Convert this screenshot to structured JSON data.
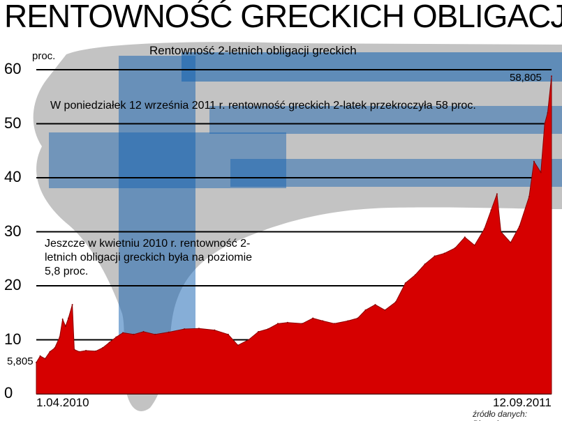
{
  "title": "RENTOWNOŚĆ GRECKICH OBLIGACJI",
  "colors": {
    "series": "#d60000",
    "flag_blue": "#0d5eaf",
    "gridline": "#000000"
  },
  "background": {
    "image": "hand-thumb-down-greek-flag"
  },
  "chart_data": {
    "type": "area",
    "title": "Rentowność 2-letnich obligacji greckich",
    "ylabel": "proc.",
    "xlabel": "",
    "ylim": [
      0,
      60
    ],
    "yticks": [
      0,
      10,
      20,
      30,
      40,
      50,
      60
    ],
    "grid": true,
    "x_labels": {
      "start": "1.04.2010",
      "end": "12.09.2011"
    },
    "x_range": [
      "2010-04-01",
      "2011-09-12"
    ],
    "start_value_label": "5,805",
    "end_value_label": "58,805",
    "annotations": [
      "W poniedziałek 12 września 2011 r. rentowność greckich 2-latek przekroczyła 58 proc.",
      "Jeszcze w kwietniu 2010 r. rentowność 2-letnich obligacji greckich była na poziomie 5,8 proc."
    ],
    "source": "źródło danych: Bloomberg",
    "series": [
      {
        "values": [
          [
            "2010-04-01",
            5.8
          ],
          [
            "2010-04-05",
            7.0
          ],
          [
            "2010-04-10",
            6.5
          ],
          [
            "2010-04-15",
            7.8
          ],
          [
            "2010-04-20",
            8.5
          ],
          [
            "2010-04-25",
            10.5
          ],
          [
            "2010-04-28",
            13.8
          ],
          [
            "2010-05-01",
            12.5
          ],
          [
            "2010-05-04",
            14.0
          ],
          [
            "2010-05-08",
            16.5
          ],
          [
            "2010-05-10",
            8.2
          ],
          [
            "2010-05-15",
            7.8
          ],
          [
            "2010-05-22",
            8.0
          ],
          [
            "2010-06-01",
            7.9
          ],
          [
            "2010-06-08",
            8.5
          ],
          [
            "2010-06-15",
            9.5
          ],
          [
            "2010-06-22",
            10.5
          ],
          [
            "2010-06-29",
            11.3
          ],
          [
            "2010-07-10",
            11.0
          ],
          [
            "2010-07-20",
            11.5
          ],
          [
            "2010-08-01",
            11.0
          ],
          [
            "2010-08-15",
            11.4
          ],
          [
            "2010-08-31",
            12.0
          ],
          [
            "2010-09-15",
            12.1
          ],
          [
            "2010-10-01",
            11.8
          ],
          [
            "2010-10-15",
            11.0
          ],
          [
            "2010-10-25",
            9.0
          ],
          [
            "2010-11-05",
            10.0
          ],
          [
            "2010-11-15",
            11.5
          ],
          [
            "2010-11-25",
            12.0
          ],
          [
            "2010-12-05",
            13.0
          ],
          [
            "2010-12-15",
            13.2
          ],
          [
            "2010-12-30",
            13.0
          ],
          [
            "2011-01-10",
            14.0
          ],
          [
            "2011-01-20",
            13.5
          ],
          [
            "2011-02-01",
            13.0
          ],
          [
            "2011-02-15",
            13.5
          ],
          [
            "2011-02-25",
            14.0
          ],
          [
            "2011-03-05",
            15.5
          ],
          [
            "2011-03-15",
            16.5
          ],
          [
            "2011-03-25",
            15.5
          ],
          [
            "2011-04-05",
            17.0
          ],
          [
            "2011-04-15",
            20.5
          ],
          [
            "2011-04-25",
            22.0
          ],
          [
            "2011-05-05",
            24.0
          ],
          [
            "2011-05-15",
            25.5
          ],
          [
            "2011-05-25",
            26.0
          ],
          [
            "2011-06-05",
            27.0
          ],
          [
            "2011-06-15",
            29.0
          ],
          [
            "2011-06-25",
            27.5
          ],
          [
            "2011-07-05",
            30.5
          ],
          [
            "2011-07-12",
            34.0
          ],
          [
            "2011-07-18",
            37.0
          ],
          [
            "2011-07-22",
            30.0
          ],
          [
            "2011-08-01",
            28.0
          ],
          [
            "2011-08-10",
            31.0
          ],
          [
            "2011-08-20",
            36.5
          ],
          [
            "2011-08-25",
            43.0
          ],
          [
            "2011-09-01",
            41.0
          ],
          [
            "2011-09-05",
            50.0
          ],
          [
            "2011-09-08",
            52.0
          ],
          [
            "2011-09-12",
            58.805
          ]
        ]
      }
    ]
  }
}
